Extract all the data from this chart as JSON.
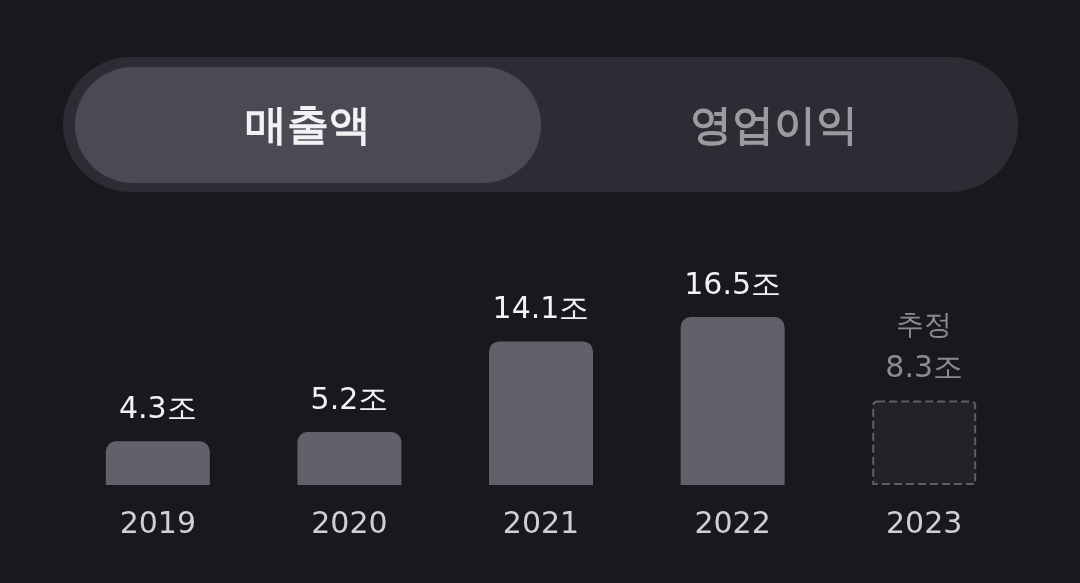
{
  "chart_data": {
    "type": "bar",
    "categories": [
      "2019",
      "2020",
      "2021",
      "2022",
      "2023"
    ],
    "series": [
      {
        "color": "#62616b",
        "values": [
          4.3,
          5.2,
          14.1,
          16.5,
          null
        ],
        "value_labels": [
          "4.3조",
          "5.2조",
          "14.1조",
          "16.5조",
          null
        ]
      },
      {
        "color": "#5f5f66",
        "line_style": "dashed",
        "values": [
          null,
          null,
          null,
          null,
          8.3
        ],
        "value_labels": [
          null,
          null,
          null,
          null,
          "8.3조"
        ]
      }
    ],
    "annotations": [
      "매출액",
      "영업이익",
      {
        "text": "추정",
        "x": "2023",
        "y": 8.3
      }
    ],
    "data_labels": true
  }
}
